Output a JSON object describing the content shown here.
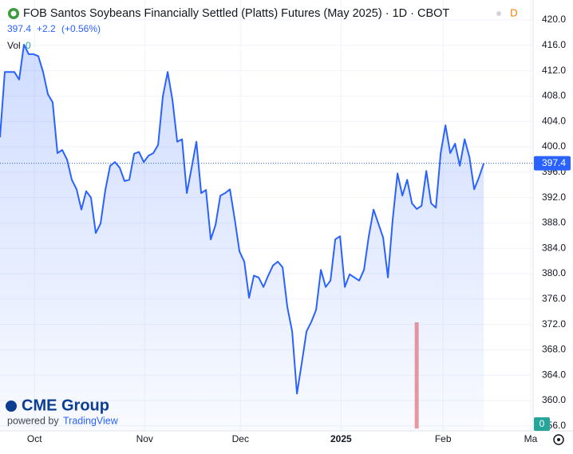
{
  "chart_data": {
    "type": "line",
    "title": "FOB Santos Soybeans Financially Settled (Platts) Futures (May 2025) · 1D · CBOT",
    "badge": "D",
    "last_price": 397.4,
    "change": "+2.2",
    "change_pct": "(+0.56%)",
    "volume_label": "Vol",
    "volume_value": "0",
    "volume_badge": "0",
    "brand": "CME Group",
    "powered_by": "powered by",
    "powered_brand": "TradingView",
    "series": [
      {
        "name": "FOB Santos Soybeans",
        "color": "#2962ff",
        "values": [
          401.5,
          411.8,
          411.8,
          411.8,
          410.6,
          416.1,
          414.6,
          414.6,
          414.3,
          411.8,
          408.3,
          407,
          399,
          399.5,
          398,
          394.8,
          393.3,
          390.1,
          393,
          392,
          386.4,
          387.9,
          393.2,
          397,
          397.6,
          396.7,
          394.6,
          394.8,
          398.9,
          399.2,
          397.6,
          398.6,
          399,
          400.3,
          408,
          411.8,
          407.4,
          400.8,
          401.2,
          392.7,
          396.7,
          400.8,
          392.7,
          393.2,
          385.4,
          387.7,
          392.3,
          392.7,
          393.3,
          388.6,
          383.5,
          381.9,
          376.2,
          379.7,
          379.4,
          377.9,
          379.7,
          381.3,
          381.9,
          381,
          374.7,
          370.9,
          361.1,
          365.9,
          370.9,
          372.4,
          374.3,
          380.6,
          377.9,
          378.9,
          385.4,
          385.9,
          377.9,
          379.9,
          379.4,
          378.9,
          380.6,
          385.9,
          390.1,
          387.9,
          385.7,
          379.4,
          388.6,
          395.8,
          392.3,
          394.8,
          391.1,
          390.2,
          390.7,
          396.2,
          391.1,
          390.4,
          399,
          403.4,
          399,
          400.5,
          397,
          401.2,
          398.4,
          393.3,
          395.2,
          397.4
        ]
      }
    ],
    "volume": {
      "color": "#ef9a9a",
      "values": [
        0,
        0,
        0,
        0,
        0,
        0,
        0,
        0,
        0,
        0,
        0,
        0,
        0,
        0,
        0,
        0,
        0,
        0,
        0,
        0,
        0,
        0,
        0,
        0,
        0,
        0,
        0,
        0,
        0,
        0,
        0,
        0,
        0,
        0,
        0,
        0,
        0,
        0,
        0,
        0,
        0,
        0,
        0,
        0,
        0,
        0,
        0,
        0,
        0,
        0,
        0,
        0,
        0,
        0,
        0,
        0,
        0,
        0,
        0,
        0,
        0,
        0,
        0,
        0,
        0,
        0,
        0,
        0,
        0,
        0,
        0,
        0,
        0,
        0,
        0,
        0,
        0,
        0,
        0,
        0,
        0,
        0,
        0,
        0,
        0,
        0,
        0,
        1,
        0,
        0,
        0,
        0,
        0,
        0,
        0,
        0,
        0,
        0,
        0,
        0,
        0,
        0
      ],
      "ylim": [
        0,
        1
      ]
    },
    "xlim": [
      0,
      111.3
    ],
    "xticks": [
      {
        "value": 7.2,
        "label": "Oct"
      },
      {
        "value": 30.2,
        "label": "Nov"
      },
      {
        "value": 50.2,
        "label": "Dec"
      },
      {
        "value": 71.2,
        "label": "2025"
      },
      {
        "value": 92.5,
        "label": "Feb"
      },
      {
        "value": 110.8,
        "label": "Ma"
      }
    ],
    "ylim": [
      356,
      420
    ],
    "yticks": [
      {
        "value": 420,
        "label": "420.0"
      },
      {
        "value": 416,
        "label": "416.0"
      },
      {
        "value": 412,
        "label": "412.0"
      },
      {
        "value": 408,
        "label": "408.0"
      },
      {
        "value": 404,
        "label": "404.0"
      },
      {
        "value": 400,
        "label": "400.0"
      },
      {
        "value": 396,
        "label": "396.0"
      },
      {
        "value": 392,
        "label": "392.0"
      },
      {
        "value": 388,
        "label": "388.0"
      },
      {
        "value": 384,
        "label": "384.0"
      },
      {
        "value": 380,
        "label": "380.0"
      },
      {
        "value": 376,
        "label": "376.0"
      },
      {
        "value": 372,
        "label": "372.0"
      },
      {
        "value": 368,
        "label": "368.0"
      },
      {
        "value": 364,
        "label": "364.0"
      },
      {
        "value": 360,
        "label": "360.0"
      },
      {
        "value": 356,
        "label": "356.0"
      }
    ],
    "grid": true
  }
}
